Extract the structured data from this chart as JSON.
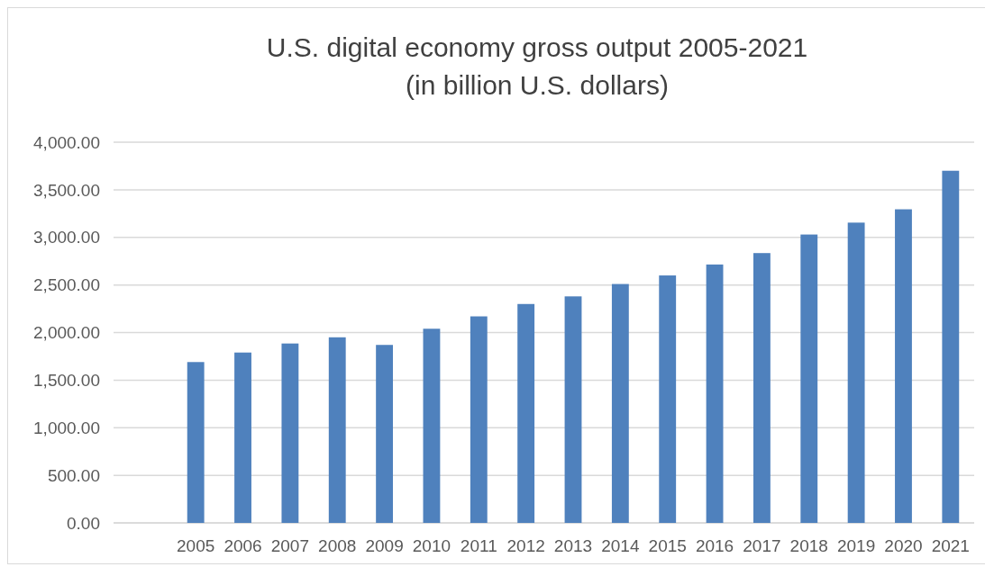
{
  "chart_data": {
    "type": "bar",
    "title": "U.S. digital economy gross output 2005-2021\n(in billion U.S. dollars)",
    "categories": [
      "2005",
      "2006",
      "2007",
      "2008",
      "2009",
      "2010",
      "2011",
      "2012",
      "2013",
      "2014",
      "2015",
      "2016",
      "2017",
      "2018",
      "2019",
      "2020",
      "2021"
    ],
    "values": [
      1690,
      1790,
      1885,
      1950,
      1870,
      2040,
      2170,
      2300,
      2380,
      2510,
      2600,
      2715,
      2835,
      3030,
      3155,
      3295,
      3700
    ],
    "color": "#4f81bd",
    "ylim": [
      0,
      4000
    ],
    "yticks": [
      {
        "value": 0,
        "label": "0.00"
      },
      {
        "value": 500,
        "label": "500.00"
      },
      {
        "value": 1000,
        "label": "1,000.00"
      },
      {
        "value": 1500,
        "label": "1,500.00"
      },
      {
        "value": 2000,
        "label": "2,000.00"
      },
      {
        "value": 2500,
        "label": "2,500.00"
      },
      {
        "value": 3000,
        "label": "3,000.00"
      },
      {
        "value": 3500,
        "label": "3,500.00"
      },
      {
        "value": 4000,
        "label": "4,000.00"
      }
    ],
    "grid": "y"
  }
}
